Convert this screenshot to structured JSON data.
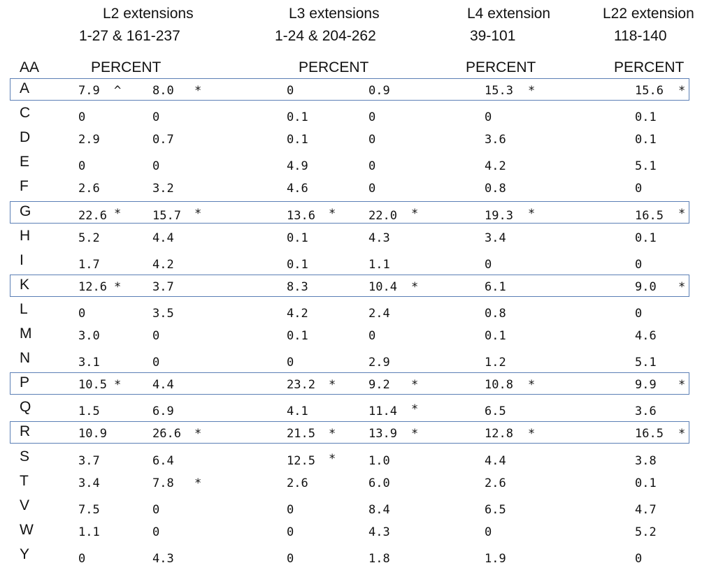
{
  "header": {
    "groups": [
      {
        "title": "L2 extensions",
        "range": "1-27 & 161-237"
      },
      {
        "title": "L3 extensions",
        "range": "1-24 & 204-262"
      },
      {
        "title": "L4 extension",
        "range": "39-101"
      },
      {
        "title": "L22 extension",
        "range": "118-140"
      }
    ],
    "aa": "AA",
    "percent": [
      "PERCENT",
      "PERCENT",
      "PERCENT",
      "PERCENT"
    ]
  },
  "table": {
    "rows": [
      {
        "aa": "A",
        "highlight": true,
        "cells": [
          [
            "7.9",
            "^"
          ],
          [
            "8.0",
            "*"
          ],
          [
            "0"
          ],
          [
            "0.9"
          ],
          [
            "15.3",
            "*"
          ],
          [
            "15.6",
            "*"
          ]
        ]
      },
      {
        "aa": "C",
        "cells": [
          [
            "0"
          ],
          [
            "0"
          ],
          [
            "0.1"
          ],
          [
            "0"
          ],
          [
            "0"
          ],
          [
            "0.1"
          ]
        ]
      },
      {
        "aa": "D",
        "cells": [
          [
            "2.9"
          ],
          [
            "0.7"
          ],
          [
            "0.1"
          ],
          [
            "0"
          ],
          [
            "3.6"
          ],
          [
            "0.1"
          ]
        ]
      },
      {
        "aa": "E",
        "cells": [
          [
            "0"
          ],
          [
            "0"
          ],
          [
            "4.9"
          ],
          [
            "0"
          ],
          [
            "4.2"
          ],
          [
            "5.1"
          ]
        ]
      },
      {
        "aa": "F",
        "cells": [
          [
            "2.6"
          ],
          [
            "3.2"
          ],
          [
            "4.6"
          ],
          [
            "0"
          ],
          [
            "0.8"
          ],
          [
            "0"
          ]
        ]
      },
      {
        "aa": "G",
        "highlight": true,
        "cells": [
          [
            "22.6",
            "*"
          ],
          [
            "15.7",
            "*"
          ],
          [
            "13.6",
            "*"
          ],
          [
            "22.0",
            "*"
          ],
          [
            "19.3",
            "*"
          ],
          [
            "16.5",
            "*"
          ]
        ]
      },
      {
        "aa": "H",
        "cells": [
          [
            "5.2"
          ],
          [
            "4.4"
          ],
          [
            "0.1"
          ],
          [
            "4.3"
          ],
          [
            "3.4"
          ],
          [
            "0.1"
          ]
        ]
      },
      {
        "aa": "I",
        "cells": [
          [
            "1.7"
          ],
          [
            "4.2"
          ],
          [
            "0.1"
          ],
          [
            "1.1"
          ],
          [
            "0"
          ],
          [
            "0"
          ]
        ]
      },
      {
        "aa": "K",
        "highlight": true,
        "cells": [
          [
            "12.6",
            "*"
          ],
          [
            "3.7"
          ],
          [
            "8.3"
          ],
          [
            "10.4",
            "*"
          ],
          [
            "6.1"
          ],
          [
            "9.0",
            "*"
          ]
        ]
      },
      {
        "aa": "L",
        "cells": [
          [
            "0"
          ],
          [
            "3.5"
          ],
          [
            "4.2"
          ],
          [
            "2.4"
          ],
          [
            "0.8"
          ],
          [
            "0"
          ]
        ]
      },
      {
        "aa": "M",
        "cells": [
          [
            "3.0"
          ],
          [
            "0"
          ],
          [
            "0.1"
          ],
          [
            "0"
          ],
          [
            "0.1"
          ],
          [
            "4.6"
          ]
        ]
      },
      {
        "aa": "N",
        "cells": [
          [
            "3.1"
          ],
          [
            "0"
          ],
          [
            "0"
          ],
          [
            "2.9"
          ],
          [
            "1.2"
          ],
          [
            "5.1"
          ]
        ]
      },
      {
        "aa": "P",
        "highlight": true,
        "cells": [
          [
            "10.5",
            "*"
          ],
          [
            "4.4"
          ],
          [
            "23.2",
            "*"
          ],
          [
            "9.2",
            "*"
          ],
          [
            "10.8",
            "*"
          ],
          [
            "9.9",
            "*"
          ]
        ]
      },
      {
        "aa": "Q",
        "cells": [
          [
            "1.5"
          ],
          [
            "6.9"
          ],
          [
            "4.1"
          ],
          [
            "11.4",
            "*"
          ],
          [
            "6.5"
          ],
          [
            "3.6"
          ]
        ]
      },
      {
        "aa": "R",
        "highlight": true,
        "cells": [
          [
            "10.9"
          ],
          [
            "26.6",
            "*"
          ],
          [
            "21.5",
            "*"
          ],
          [
            "13.9",
            "*"
          ],
          [
            "12.8",
            "*"
          ],
          [
            "16.5",
            "*"
          ]
        ]
      },
      {
        "aa": "S",
        "cells": [
          [
            "3.7"
          ],
          [
            "6.4"
          ],
          [
            "12.5",
            "*"
          ],
          [
            "1.0"
          ],
          [
            "4.4"
          ],
          [
            "3.8"
          ]
        ]
      },
      {
        "aa": "T",
        "cells": [
          [
            "3.4"
          ],
          [
            "7.8",
            "*"
          ],
          [
            "2.6"
          ],
          [
            "6.0"
          ],
          [
            "2.6"
          ],
          [
            "0.1"
          ]
        ]
      },
      {
        "aa": "V",
        "cells": [
          [
            "7.5"
          ],
          [
            "0"
          ],
          [
            "0"
          ],
          [
            "8.4"
          ],
          [
            "6.5"
          ],
          [
            "4.7"
          ]
        ]
      },
      {
        "aa": "W",
        "cells": [
          [
            "1.1"
          ],
          [
            "0"
          ],
          [
            "0"
          ],
          [
            "4.3"
          ],
          [
            "0"
          ],
          [
            "5.2"
          ]
        ]
      },
      {
        "aa": "Y",
        "cells": [
          [
            "0"
          ],
          [
            "4.3"
          ],
          [
            "0"
          ],
          [
            "1.8"
          ],
          [
            "1.9"
          ],
          [
            "0"
          ]
        ]
      }
    ]
  }
}
